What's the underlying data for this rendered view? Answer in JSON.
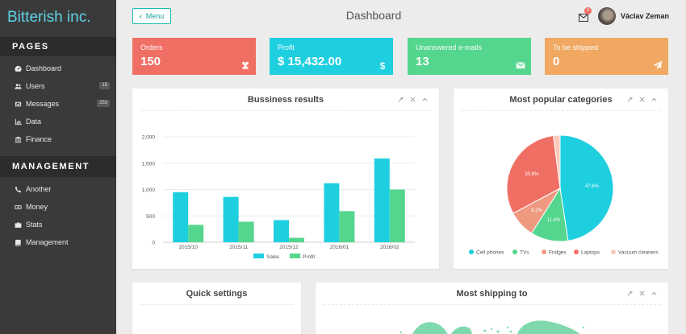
{
  "brand": "Bitterish inc.",
  "sidebar": {
    "pages_heading": "PAGES",
    "pages": [
      {
        "label": "Dashboard",
        "icon": "dashboard-icon",
        "badge": ""
      },
      {
        "label": "Users",
        "icon": "users-icon",
        "badge": "15"
      },
      {
        "label": "Messages",
        "icon": "envelope-icon",
        "badge": "253"
      },
      {
        "label": "Data",
        "icon": "bar-chart-icon",
        "badge": ""
      },
      {
        "label": "Finance",
        "icon": "bank-icon",
        "badge": ""
      }
    ],
    "management_heading": "MANAGEMENT",
    "management": [
      {
        "label": "Another",
        "icon": "phone-icon"
      },
      {
        "label": "Money",
        "icon": "money-icon"
      },
      {
        "label": "Stats",
        "icon": "briefcase-icon"
      },
      {
        "label": "Management",
        "icon": "book-icon"
      }
    ]
  },
  "header": {
    "menu_label": "Menu",
    "title": "Dashboard",
    "mail_badge": "3",
    "user_name": "Václav Zeman"
  },
  "stats": [
    {
      "label": "Orders",
      "value": "150",
      "color": "#ef6f64",
      "icon": "users-icon"
    },
    {
      "label": "Profit",
      "value": "$ 15,432.00",
      "color": "#1ecfe0",
      "icon": "dollar-icon"
    },
    {
      "label": "Unanswered e-mails",
      "value": "13",
      "color": "#54d68e",
      "icon": "envelope-icon"
    },
    {
      "label": "To be shipped",
      "value": "0",
      "color": "#f0a862",
      "icon": "paper-plane-icon"
    }
  ],
  "panels": {
    "business_title": "Bussiness results",
    "categories_title": "Most popular categories",
    "quick_title": "Quick settings",
    "shipping_title": "Most shipping to"
  },
  "chart_data": [
    {
      "type": "bar",
      "title": "Bussiness results",
      "categories": [
        "2015/10",
        "2015/11",
        "2015/12",
        "2016/01",
        "2016/02"
      ],
      "series": [
        {
          "name": "Sales",
          "color": "#1ecfe0",
          "values": [
            950,
            860,
            420,
            1120,
            1590
          ]
        },
        {
          "name": "Profit",
          "color": "#54d68e",
          "values": [
            330,
            390,
            85,
            590,
            1000
          ]
        }
      ],
      "yticks": [
        "0",
        "500",
        "1,000",
        "1,500",
        "2,000"
      ],
      "ylim": [
        0,
        2000
      ],
      "grid": true,
      "legend": "bottom"
    },
    {
      "type": "pie",
      "title": "Most popular categories",
      "slices": [
        {
          "name": "Cell phones",
          "value": 47.6,
          "label": "47.6%",
          "color": "#1ecfe0"
        },
        {
          "name": "TVs",
          "value": 11.4,
          "label": "11.4%",
          "color": "#54d68e"
        },
        {
          "name": "Fridges",
          "value": 8.2,
          "label": "8.2%",
          "color": "#ee9a80"
        },
        {
          "name": "Laptops",
          "value": 30.8,
          "label": "30.8%",
          "color": "#ef6f64"
        },
        {
          "name": "Vacuum cleaners",
          "value": 2.0,
          "label": "",
          "color": "#f9c9b9"
        }
      ],
      "legend": "bottom"
    }
  ]
}
